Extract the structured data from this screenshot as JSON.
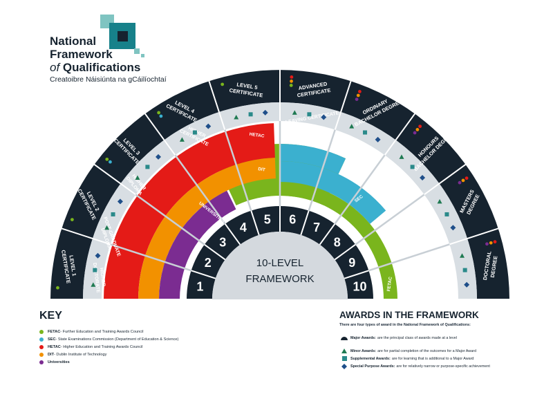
{
  "logo": {
    "line1": "National",
    "line2": "Framework",
    "line3_of": "of",
    "line3_rest": " Qualifications",
    "subtitle": "Creatoibre Náisiúnta na gCáilíochtaí"
  },
  "center": {
    "line1": "10-LEVEL",
    "line2": "FRAMEWORK"
  },
  "levels": [
    "1",
    "2",
    "3",
    "4",
    "5",
    "6",
    "7",
    "8",
    "9",
    "10"
  ],
  "outer_labels": [
    [
      "LEVEL 1",
      "CERTIFICATE"
    ],
    [
      "LEVEL 2",
      "CERTIFICATE"
    ],
    [
      "LEVEL 3",
      "CERTIFICATE"
    ],
    [
      "LEVEL 4",
      "CERTIFICATE"
    ],
    [
      "LEVEL 5",
      "CERTIFICATE"
    ],
    [
      "ADVANCED",
      "CERTIFICATE"
    ],
    [
      "ORDINARY",
      "BACHELOR DEGREE"
    ],
    [
      "HONOURS",
      "BACHELOR DEGREE"
    ],
    [
      "MASTERS",
      "DEGREE"
    ],
    [
      "DOCTORAL",
      "DEGREE"
    ]
  ],
  "inner_labels": [
    {
      "text": [
        "JUNIOR",
        "CERTIFICATE"
      ]
    },
    {
      "text": [
        "LEAVING CERTIFICATE"
      ]
    },
    {
      "text": [
        "HIGHER",
        "CERTIFICATE"
      ]
    },
    {
      "text": [
        "HIGHER",
        "DIPLOMA"
      ]
    },
    {
      "text": [
        "POST-GRADUATE",
        "DIPLOMA"
      ]
    },
    {
      "text": [
        "HIGHER",
        "DOCTORATE"
      ]
    }
  ],
  "bodies": [
    {
      "name": "FETAC",
      "label": "FETAC",
      "color": "#7ab51d"
    },
    {
      "name": "SEC",
      "label": "SEC",
      "color": "#3bb0cf"
    },
    {
      "name": "HETAC",
      "label": "HETAC",
      "color": "#e41b17"
    },
    {
      "name": "DIT",
      "label": "DIT",
      "color": "#f29100"
    },
    {
      "name": "Universities",
      "label": "UNIVERSITIES",
      "color": "#7b2c91"
    }
  ],
  "key": {
    "title": "KEY",
    "items": [
      {
        "color": "#7ab51d",
        "bold": "FETAC",
        "text": " - Further Education and Training Awards Council"
      },
      {
        "color": "#3bb0cf",
        "bold": "SEC",
        "text": " - State Examinations Commission (Department of Education & Science)"
      },
      {
        "color": "#e41b17",
        "bold": "HETAC",
        "text": " - Higher Education and Training Awards Council"
      },
      {
        "color": "#f29100",
        "bold": "DIT",
        "text": " - Dublin Institute of Technology"
      },
      {
        "color": "#7b2c91",
        "bold": "Universities",
        "text": ""
      }
    ]
  },
  "awards": {
    "title": "AWARDS IN THE FRAMEWORK",
    "intro": "There are four types of award in the National Framework of Qualifications:",
    "items": [
      {
        "icon": "semicircle-icon",
        "bold": "Major Awards:",
        "text": "are the principal class of awards made at a level"
      },
      {
        "icon": "triangle-icon",
        "bold": "Minor Awards:",
        "text": "are for partial completion of the outcomes for a Major Award"
      },
      {
        "icon": "square-icon",
        "bold": "Supplemental Awards:",
        "text": "are for learning that is additional to a Major Award"
      },
      {
        "icon": "diamond-icon",
        "bold": "Special Purpose Awards:",
        "text": "are for relatively narrow or purpose-specific achievement"
      }
    ]
  },
  "colors": {
    "navy": "#16232f",
    "ring": "#d8dee3",
    "green": "#1f7a52",
    "teal": "#2a8a8a",
    "blue": "#1f4f8a"
  }
}
